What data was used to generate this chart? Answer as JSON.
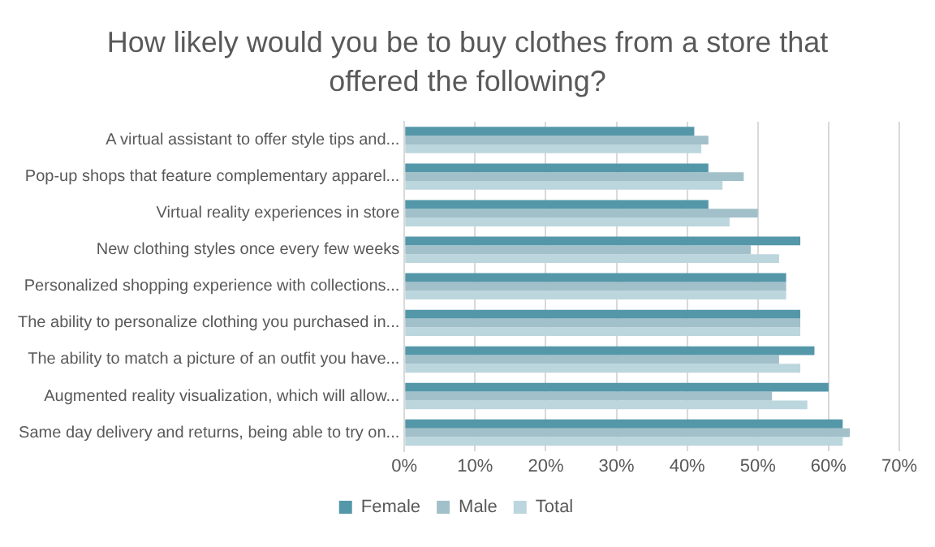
{
  "chart_data": {
    "type": "bar",
    "orientation": "horizontal",
    "title": "How likely would you be to buy clothes from a store that offered the following?",
    "categories": [
      "A virtual assistant to offer style tips and...",
      "Pop-up shops that feature complementary apparel...",
      "Virtual reality experiences in store",
      "New clothing styles once every few weeks",
      "Personalized shopping experience with collections...",
      "The ability to personalize clothing you purchased in...",
      "The ability to match a picture of an outfit you have...",
      "Augmented reality visualization, which will allow...",
      "Same day delivery and returns, being able to try on..."
    ],
    "series": [
      {
        "name": "Female",
        "color": "#5497a9",
        "values": [
          41,
          43,
          43,
          56,
          54,
          56,
          58,
          60,
          62
        ]
      },
      {
        "name": "Male",
        "color": "#a2c0c9",
        "values": [
          43,
          48,
          50,
          49,
          54,
          56,
          53,
          52,
          63
        ]
      },
      {
        "name": "Total",
        "color": "#bcd6dd",
        "values": [
          42,
          45,
          46,
          53,
          54,
          56,
          56,
          57,
          62
        ]
      }
    ],
    "xlim": [
      0,
      70
    ],
    "xticks": [
      {
        "value": 0,
        "label": "0%"
      },
      {
        "value": 10,
        "label": "10%"
      },
      {
        "value": 20,
        "label": "20%"
      },
      {
        "value": 30,
        "label": "30%"
      },
      {
        "value": 40,
        "label": "40%"
      },
      {
        "value": 50,
        "label": "50%"
      },
      {
        "value": 60,
        "label": "60%"
      },
      {
        "value": 70,
        "label": "70%"
      }
    ],
    "grid": "x",
    "legend": "bottom"
  }
}
